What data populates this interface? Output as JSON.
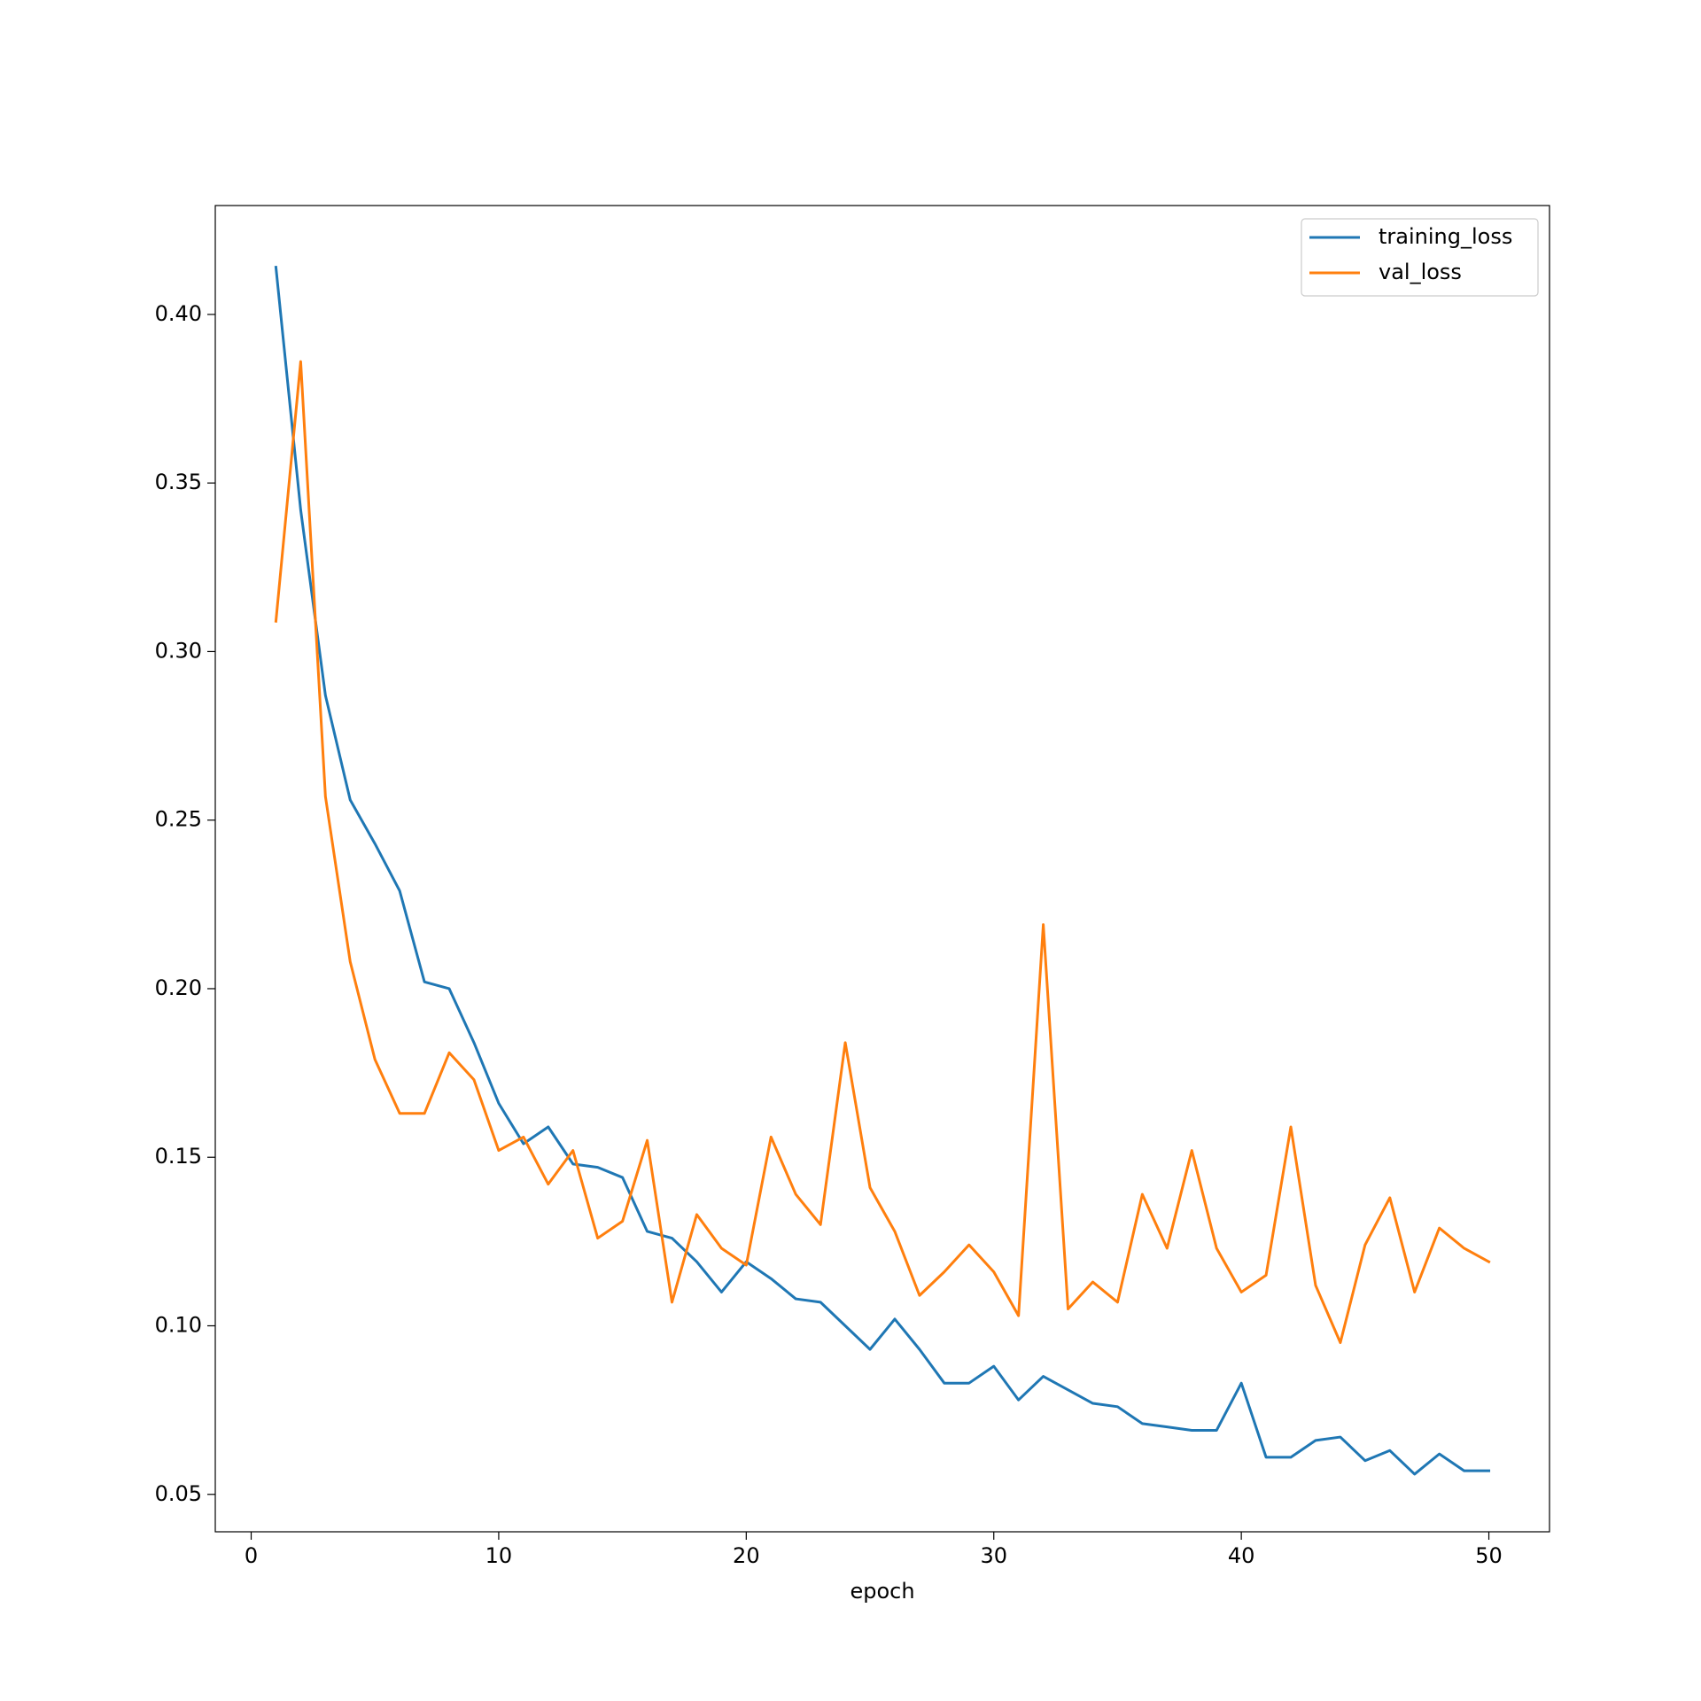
{
  "chart_data": {
    "type": "line",
    "x_label": "epoch",
    "x": [
      1,
      2,
      3,
      4,
      5,
      6,
      7,
      8,
      9,
      10,
      11,
      12,
      13,
      14,
      15,
      16,
      17,
      18,
      19,
      20,
      21,
      22,
      23,
      24,
      25,
      26,
      27,
      28,
      29,
      30,
      31,
      32,
      33,
      34,
      35,
      36,
      37,
      38,
      39,
      40,
      41,
      42,
      43,
      44,
      45,
      46,
      47,
      48,
      49,
      50
    ],
    "series": [
      {
        "name": "training_loss",
        "color": "#1f77b4",
        "values": [
          0.414,
          0.342,
          0.287,
          0.256,
          0.243,
          0.229,
          0.202,
          0.2,
          0.184,
          0.166,
          0.154,
          0.159,
          0.148,
          0.147,
          0.144,
          0.128,
          0.126,
          0.119,
          0.11,
          0.119,
          0.114,
          0.108,
          0.107,
          0.1,
          0.093,
          0.102,
          0.093,
          0.083,
          0.083,
          0.088,
          0.078,
          0.085,
          0.081,
          0.077,
          0.076,
          0.071,
          0.07,
          0.069,
          0.069,
          0.083,
          0.061,
          0.061,
          0.066,
          0.067,
          0.06,
          0.063,
          0.056,
          0.062,
          0.057,
          0.057
        ]
      },
      {
        "name": "val_loss",
        "color": "#ff7f0e",
        "values": [
          0.309,
          0.386,
          0.257,
          0.208,
          0.179,
          0.163,
          0.163,
          0.181,
          0.173,
          0.152,
          0.156,
          0.142,
          0.152,
          0.126,
          0.131,
          0.155,
          0.107,
          0.133,
          0.123,
          0.118,
          0.156,
          0.139,
          0.13,
          0.184,
          0.141,
          0.128,
          0.109,
          0.116,
          0.124,
          0.116,
          0.103,
          0.219,
          0.105,
          0.113,
          0.107,
          0.139,
          0.123,
          0.152,
          0.123,
          0.11,
          0.115,
          0.159,
          0.112,
          0.095,
          0.124,
          0.138,
          0.11,
          0.129,
          0.123,
          0.119
        ]
      }
    ],
    "xlim": [
      -1.45,
      52.45
    ],
    "xticks": [
      0,
      10,
      20,
      30,
      40,
      50
    ],
    "ylim": [
      0.0389,
      0.4323
    ],
    "yticks": [
      0.05,
      {
        "value": 0.1,
        "label": "0.10"
      },
      0.15,
      {
        "value": 0.2,
        "label": "0.20"
      },
      0.25,
      {
        "value": 0.3,
        "label": "0.30"
      },
      0.35,
      {
        "value": 0.4,
        "label": "0.40"
      }
    ],
    "legend": "upper right"
  }
}
